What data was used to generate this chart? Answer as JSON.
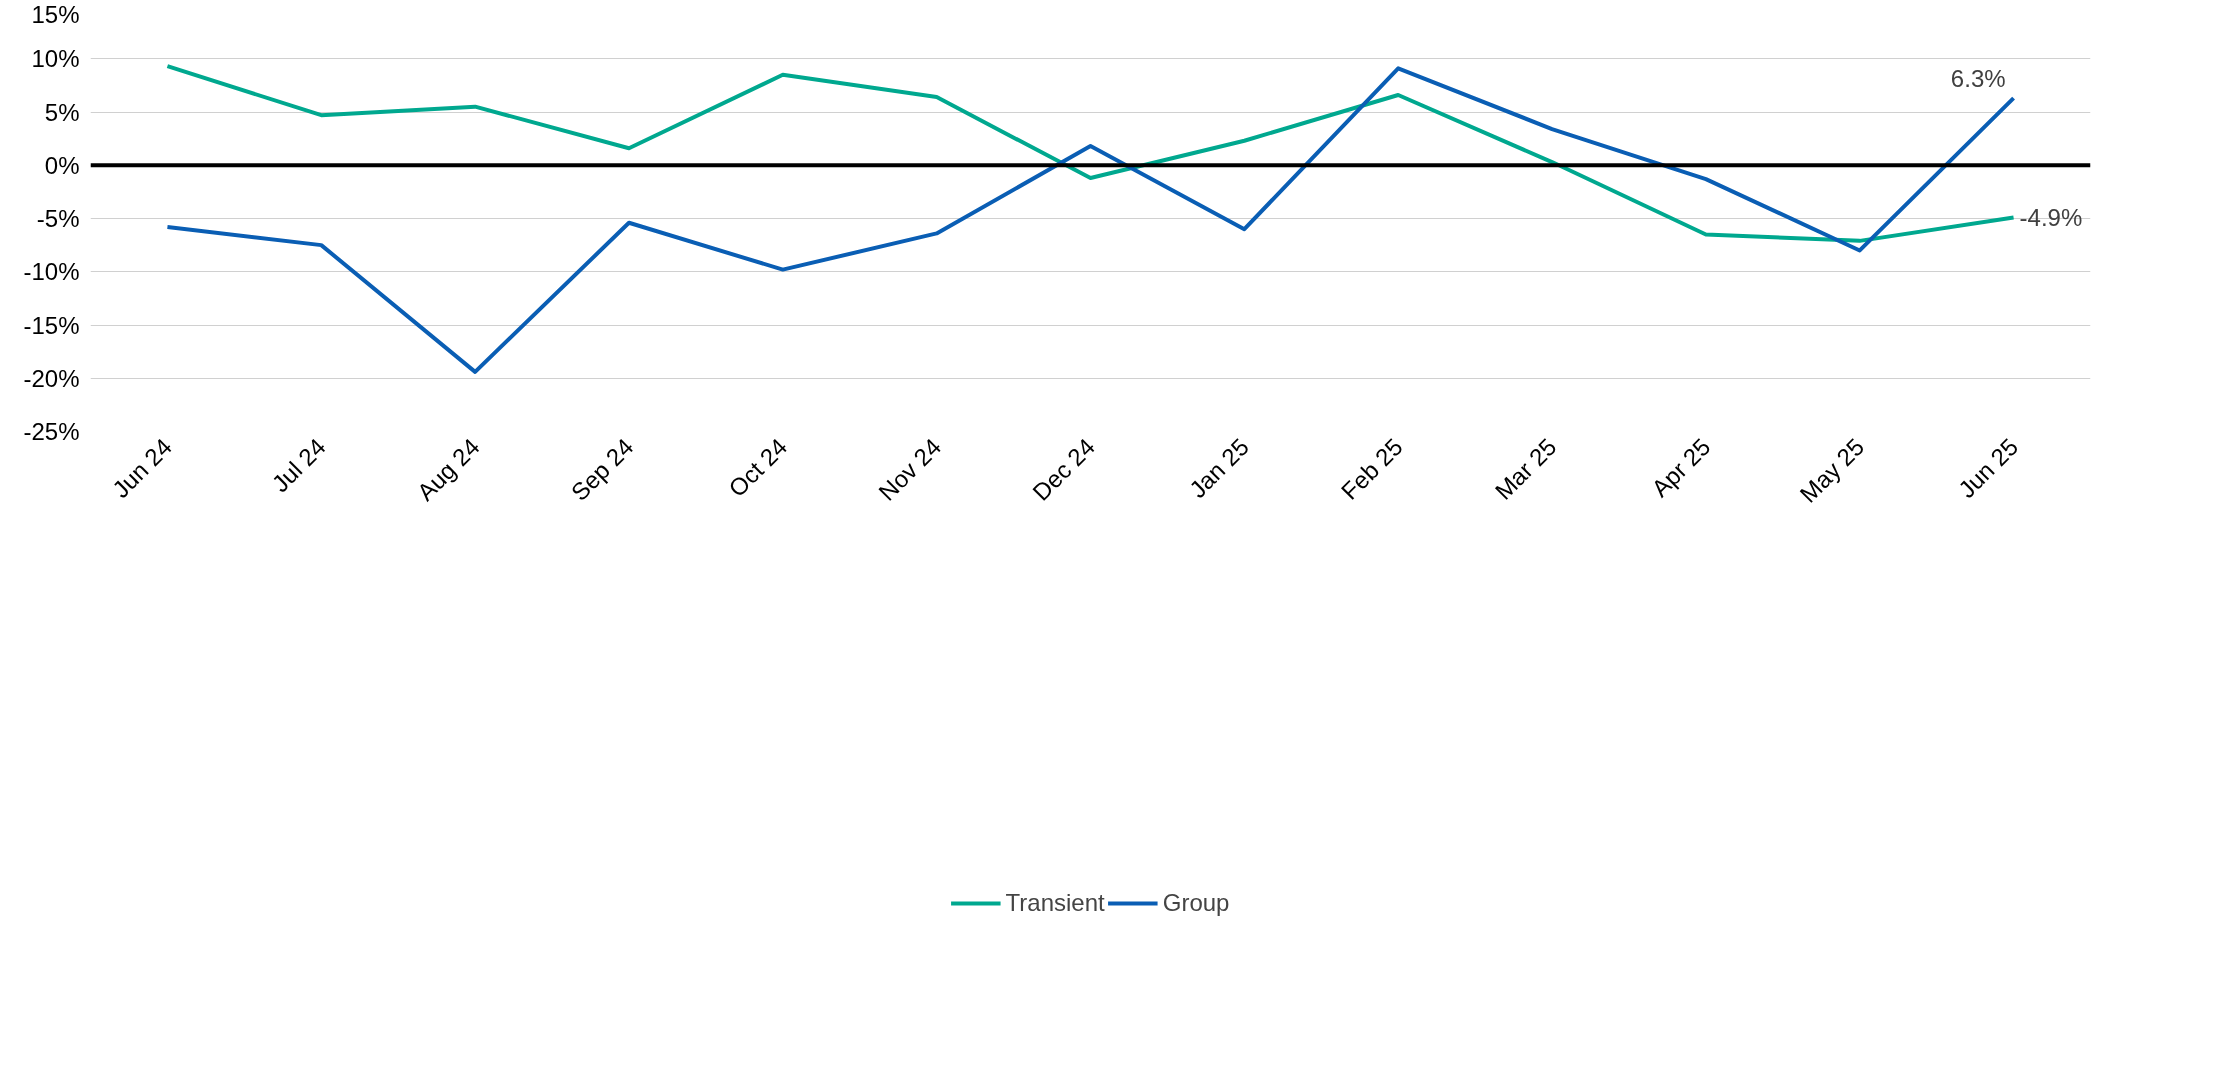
{
  "chart_data": {
    "type": "line",
    "categories": [
      "Jun 24",
      "Jul 24",
      "Aug 24",
      "Sep 24",
      "Oct 24",
      "Nov 24",
      "Dec 24",
      "Jan 25",
      "Feb 25",
      "Mar 25",
      "Apr 25",
      "May 25",
      "Jun 25"
    ],
    "series": [
      {
        "name": "Transient",
        "color": "#00a88f",
        "values": [
          9.3,
          4.7,
          5.5,
          1.6,
          8.5,
          6.4,
          -1.2,
          2.3,
          6.6,
          0.3,
          -6.5,
          -7.1,
          -4.9
        ],
        "value_labels": [
          null,
          null,
          null,
          null,
          null,
          null,
          null,
          null,
          null,
          null,
          null,
          null,
          "-4.9%"
        ]
      },
      {
        "name": "Group",
        "color": "#0a5eb4",
        "values": [
          -5.8,
          -7.5,
          -19.4,
          -5.4,
          -9.8,
          -6.4,
          1.8,
          -6.0,
          9.1,
          3.4,
          -1.3,
          -8.0,
          6.3
        ],
        "value_labels": [
          null,
          null,
          null,
          null,
          null,
          null,
          null,
          null,
          null,
          null,
          null,
          null,
          "6.3%"
        ]
      }
    ],
    "ylim": [
      -25,
      15
    ],
    "yticks": [
      {
        "value": -25,
        "label": "-25%"
      },
      {
        "value": -20,
        "label": "-20%"
      },
      {
        "value": -15,
        "label": "-15%"
      },
      {
        "value": -10,
        "label": "-10%"
      },
      {
        "value": -5,
        "label": "-5%"
      },
      {
        "value": 0,
        "label": "0%"
      },
      {
        "value": 5,
        "label": "5%"
      },
      {
        "value": 10,
        "label": "10%"
      },
      {
        "value": 15,
        "label": "15%"
      }
    ],
    "ref_lines": [
      {
        "axis": "y",
        "value": 0,
        "color": "#000000"
      }
    ],
    "grid": "y",
    "legend": "bottom",
    "marker": "none",
    "line_style": "solid"
  }
}
